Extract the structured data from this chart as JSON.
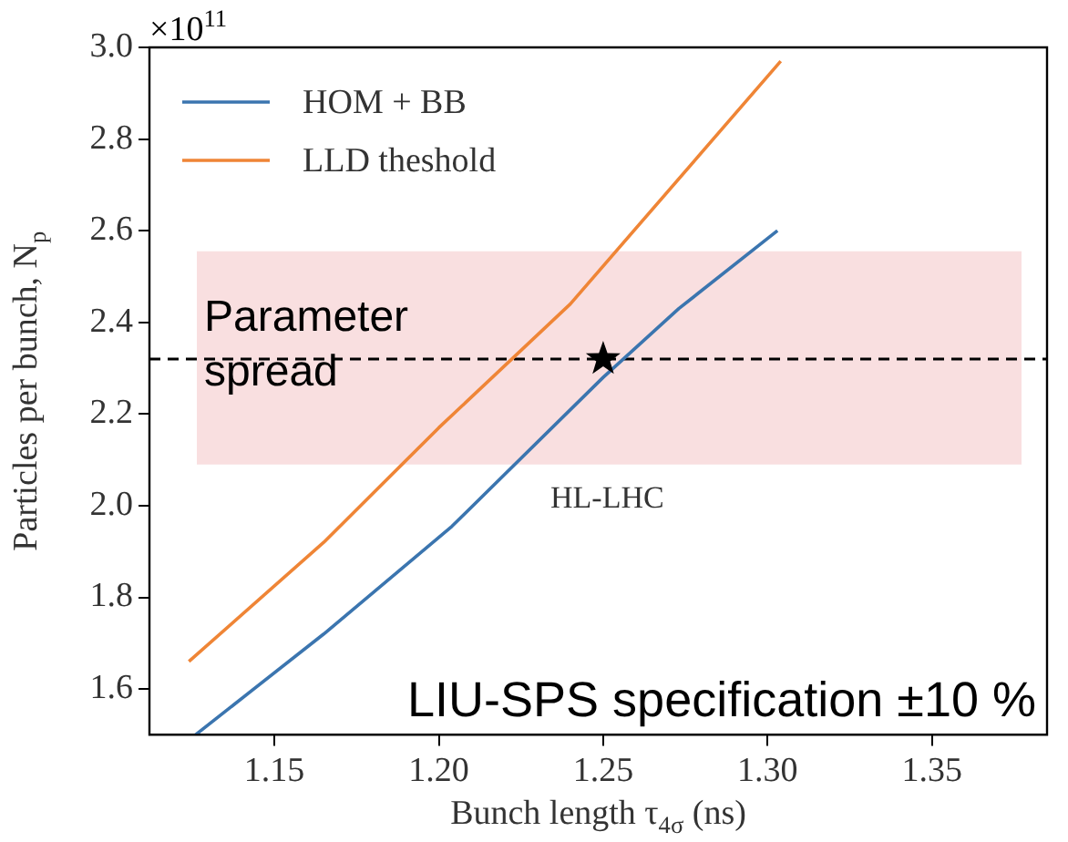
{
  "chart_data": {
    "type": "line",
    "xlabel": "Bunch length τ$_{4σ}$ (ns)",
    "ylabel": "Particles per bunch, N$_{p}$",
    "xlim": [
      1.112,
      1.385
    ],
    "ylim": [
      1.5,
      3.0
    ],
    "xticks": [
      1.15,
      {
        "value": 1.2,
        "label": "1.20"
      },
      1.25,
      {
        "value": 1.3,
        "label": "1.30"
      },
      1.35
    ],
    "yticks": [
      1.6,
      1.8,
      {
        "value": 2,
        "label": "2.0"
      },
      2.2,
      2.4,
      2.6,
      2.8,
      {
        "value": 3,
        "label": "3.0"
      }
    ],
    "series": [
      {
        "name": "HOM + BB",
        "color": "#3b75af",
        "x": [
          1.126,
          1.165,
          1.204,
          1.25,
          1.273,
          1.303
        ],
        "values": [
          1.5,
          1.72,
          1.955,
          2.28,
          2.43,
          2.6
        ]
      },
      {
        "name": "LLD theshold",
        "color": "#ef8536",
        "x": [
          1.124,
          1.165,
          1.2,
          1.24,
          1.304
        ],
        "values": [
          1.66,
          1.92,
          2.17,
          2.44,
          2.97
        ]
      },
      {
        "type": "scatter",
        "marker": "star",
        "color": "#000000",
        "x": [
          1.25
        ],
        "values": [
          2.32
        ]
      }
    ],
    "ref_lines": [
      {
        "axis": "y",
        "value": 2.32,
        "color": "#000000",
        "line_style": "dashed"
      }
    ],
    "bands": [
      {
        "axis": "y",
        "from": 2.09,
        "to": 2.555,
        "label": "Parameter\nspread",
        "color": "#f9dfe0"
      }
    ],
    "annotations": [
      "×10$^{11}$",
      "LIU-SPS specification ±10 %",
      "HL-LHC"
    ],
    "grid": false,
    "legend": "top left",
    "marker": "none",
    "line_style": "solid"
  }
}
